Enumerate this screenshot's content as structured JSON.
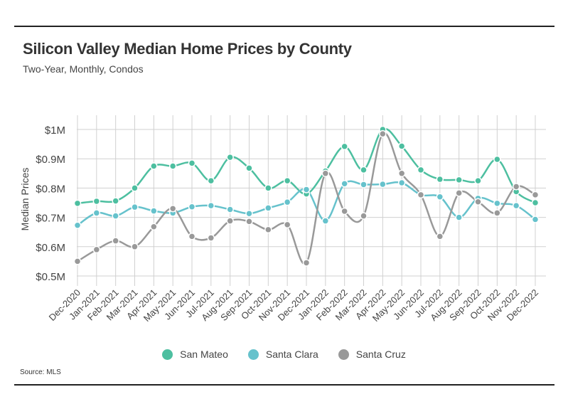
{
  "title": "Silicon Valley Median Home Prices by County",
  "subtitle": "Two-Year, Monthly, Condos",
  "source": "Source:  MLS",
  "chart_data": {
    "type": "line",
    "ylabel": "Median Prices",
    "xlabel": "",
    "ylim": [
      500000,
      1000000
    ],
    "yticks": [
      500000,
      600000,
      700000,
      800000,
      900000,
      1000000
    ],
    "ytick_labels": [
      "$0.5M",
      "$0.6M",
      "$0.7M",
      "$0.8M",
      "$0.9M",
      "$1M"
    ],
    "grid": "on",
    "legend_position": "bottom",
    "categories": [
      "Dec-2020",
      "Jan-2021",
      "Feb-2021",
      "Mar-2021",
      "Apr-2021",
      "May-2021",
      "Jun-2021",
      "Jul-2021",
      "Aug-2021",
      "Sep-2021",
      "Oct-2021",
      "Nov-2021",
      "Dec-2021",
      "Jan-2022",
      "Feb-2022",
      "Mar-2022",
      "Apr-2022",
      "May-2022",
      "Jun-2022",
      "Jul-2022",
      "Aug-2022",
      "Sep-2022",
      "Oct-2022",
      "Nov-2022",
      "Dec-2022"
    ],
    "series": [
      {
        "name": "San Mateo",
        "color": "#4dbfa0",
        "values": [
          748000,
          755000,
          756000,
          800000,
          875000,
          875000,
          885000,
          825000,
          905000,
          868000,
          800000,
          825000,
          780000,
          858000,
          942000,
          862000,
          1000000,
          943000,
          862000,
          830000,
          828000,
          825000,
          898000,
          788000,
          750000
        ]
      },
      {
        "name": "Santa Clara",
        "color": "#66c2cc",
        "values": [
          673000,
          715000,
          705000,
          735000,
          722000,
          715000,
          736000,
          740000,
          727000,
          713000,
          732000,
          752000,
          795000,
          688000,
          815000,
          812000,
          813000,
          818000,
          777000,
          770000,
          700000,
          765000,
          748000,
          740000,
          693000
        ]
      },
      {
        "name": "Santa Cruz",
        "color": "#999999",
        "values": [
          550000,
          590000,
          620000,
          600000,
          668000,
          730000,
          635000,
          630000,
          688000,
          686000,
          658000,
          675000,
          545000,
          850000,
          721000,
          705000,
          985000,
          850000,
          777000,
          635000,
          783000,
          753000,
          715000,
          805000,
          777000
        ]
      }
    ]
  }
}
